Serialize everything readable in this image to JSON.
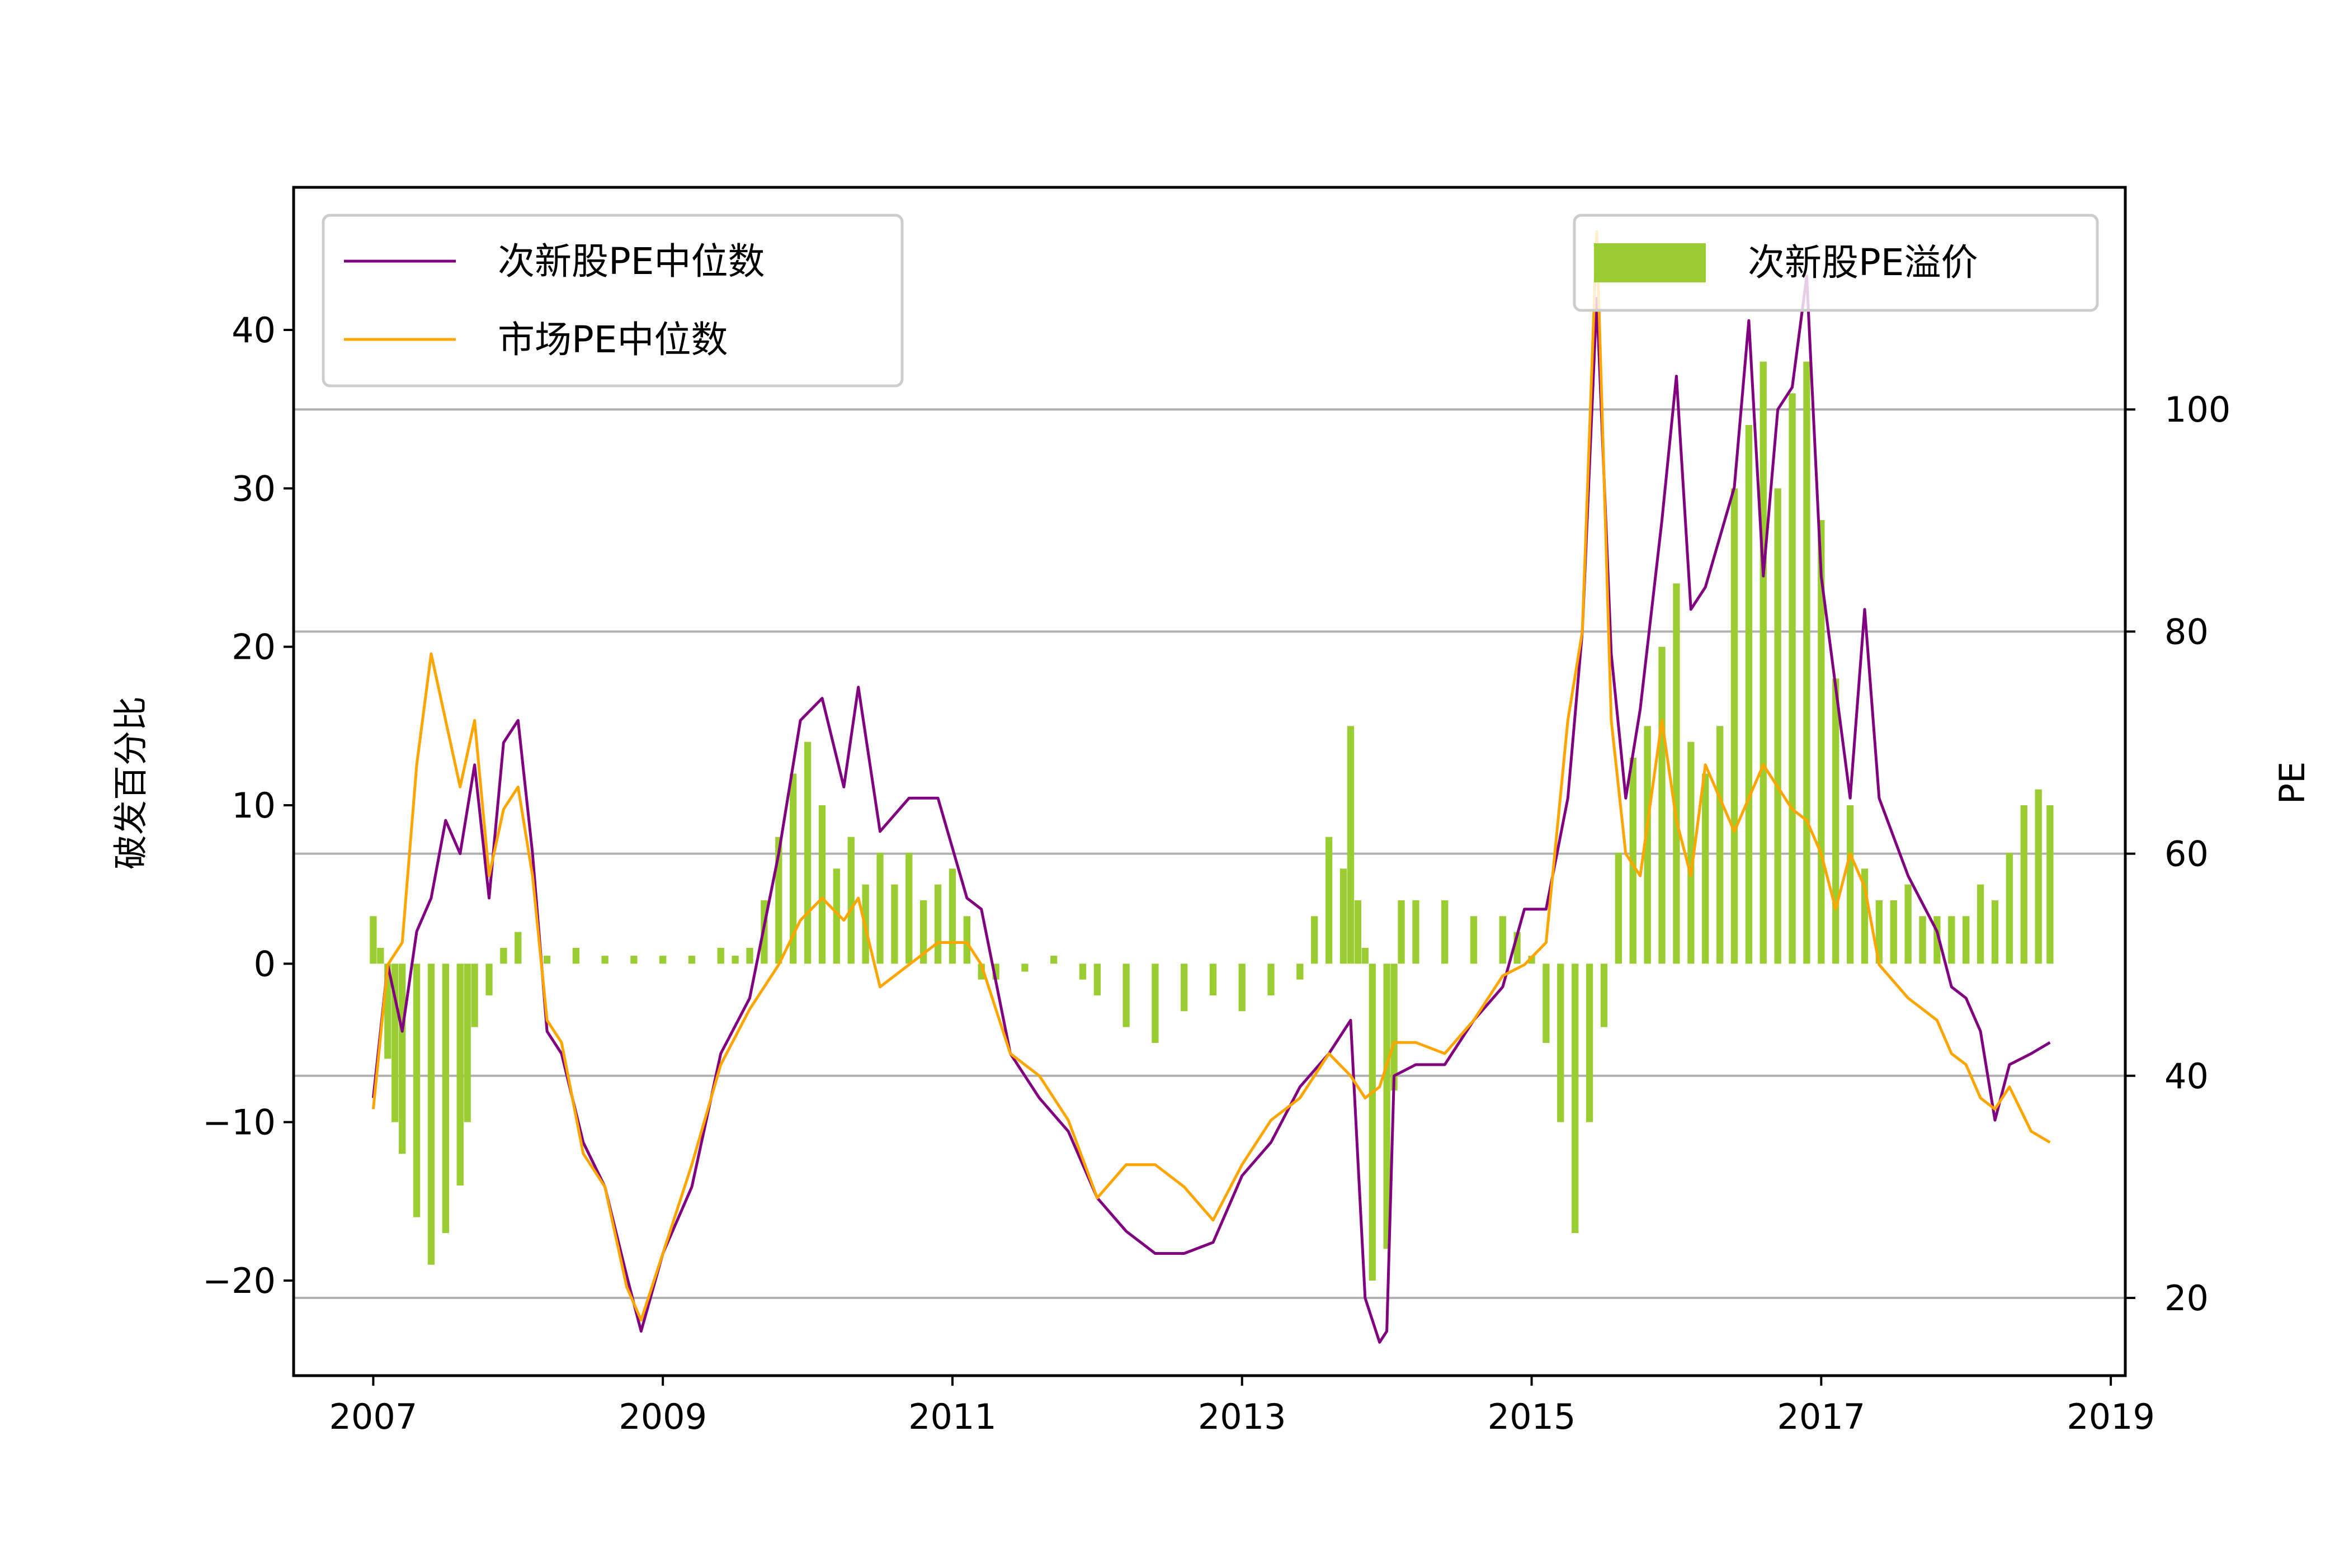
{
  "chart_data": {
    "type": "line",
    "title": "",
    "x_axis": {
      "label": "",
      "range": [
        2006.45,
        2019.1
      ],
      "ticks": [
        2007,
        2009,
        2011,
        2013,
        2015,
        2017,
        2019
      ],
      "tick_labels": [
        "2007",
        "2009",
        "2011",
        "2013",
        "2015",
        "2017",
        "2019"
      ]
    },
    "y_left": {
      "label": "破发百分比",
      "range": [
        -26,
        49
      ],
      "ticks": [
        -20,
        -10,
        0,
        10,
        20,
        30,
        40
      ],
      "tick_labels": [
        "−20",
        "−10",
        "0",
        "10",
        "20",
        "30",
        "40"
      ]
    },
    "y_right": {
      "label": "PE",
      "range": [
        13,
        120
      ],
      "ticks": [
        20,
        40,
        60,
        80,
        100
      ],
      "tick_labels": [
        "20",
        "40",
        "60",
        "80",
        "100"
      ],
      "grid": true
    },
    "legend_left": {
      "placement": "upper-left"
    },
    "legend_right": {
      "placement": "upper-right"
    },
    "colors": {
      "new_stock_pe": "#800080",
      "market_pe": "#FFA500",
      "premium": "#9ACD32",
      "grid": "#b0b0b0"
    },
    "series": [
      {
        "name": "次新股PE中位数",
        "axis": "right",
        "kind": "line",
        "x": [
          2007.0,
          2007.1,
          2007.2,
          2007.3,
          2007.4,
          2007.5,
          2007.6,
          2007.7,
          2007.8,
          2007.9,
          2008.0,
          2008.1,
          2008.2,
          2008.3,
          2008.45,
          2008.6,
          2008.75,
          2008.85,
          2009.0,
          2009.2,
          2009.4,
          2009.6,
          2009.8,
          2009.95,
          2010.1,
          2010.25,
          2010.35,
          2010.5,
          2010.7,
          2010.9,
          2011.1,
          2011.2,
          2011.4,
          2011.6,
          2011.8,
          2012.0,
          2012.2,
          2012.4,
          2012.6,
          2012.8,
          2013.0,
          2013.2,
          2013.4,
          2013.6,
          2013.75,
          2013.85,
          2013.95,
          2014.0,
          2014.05,
          2014.2,
          2014.4,
          2014.6,
          2014.8,
          2014.95,
          2015.1,
          2015.25,
          2015.35,
          2015.45,
          2015.55,
          2015.65,
          2015.75,
          2015.9,
          2016.0,
          2016.1,
          2016.2,
          2016.4,
          2016.5,
          2016.6,
          2016.7,
          2016.8,
          2016.9,
          2017.0,
          2017.1,
          2017.2,
          2017.3,
          2017.4,
          2017.6,
          2017.8,
          2017.9,
          2018.0,
          2018.1,
          2018.2,
          2018.3,
          2018.45,
          2018.58
        ],
        "values": [
          38,
          50,
          44,
          53,
          56,
          63,
          60,
          68,
          56,
          70,
          72,
          60,
          44,
          42,
          34,
          30,
          22,
          17,
          24,
          30,
          42,
          47,
          60,
          72,
          74,
          66,
          75,
          62,
          65,
          65,
          56,
          55,
          42,
          38,
          35,
          29,
          26,
          24,
          24,
          25,
          31,
          34,
          39,
          42,
          45,
          20,
          16,
          17,
          40,
          41,
          41,
          45,
          48,
          55,
          55,
          65,
          80,
          110,
          78,
          65,
          73,
          90,
          103,
          82,
          84,
          93,
          108,
          85,
          100,
          102,
          112,
          85,
          75,
          65,
          82,
          65,
          58,
          53,
          48,
          47,
          44,
          36,
          41,
          42,
          43
        ]
      },
      {
        "name": "市场PE中位数",
        "axis": "right",
        "kind": "line",
        "x": [
          2007.0,
          2007.1,
          2007.2,
          2007.3,
          2007.4,
          2007.5,
          2007.6,
          2007.7,
          2007.8,
          2007.9,
          2008.0,
          2008.1,
          2008.2,
          2008.3,
          2008.45,
          2008.6,
          2008.75,
          2008.85,
          2009.0,
          2009.2,
          2009.4,
          2009.6,
          2009.8,
          2009.95,
          2010.1,
          2010.25,
          2010.35,
          2010.5,
          2010.7,
          2010.9,
          2011.1,
          2011.2,
          2011.4,
          2011.6,
          2011.8,
          2012.0,
          2012.2,
          2012.4,
          2012.6,
          2012.8,
          2013.0,
          2013.2,
          2013.4,
          2013.6,
          2013.75,
          2013.85,
          2013.95,
          2014.0,
          2014.05,
          2014.2,
          2014.4,
          2014.6,
          2014.8,
          2014.95,
          2015.1,
          2015.25,
          2015.35,
          2015.45,
          2015.55,
          2015.65,
          2015.75,
          2015.9,
          2016.0,
          2016.1,
          2016.2,
          2016.4,
          2016.5,
          2016.6,
          2016.7,
          2016.8,
          2016.9,
          2017.0,
          2017.1,
          2017.2,
          2017.3,
          2017.4,
          2017.6,
          2017.8,
          2017.9,
          2018.0,
          2018.1,
          2018.2,
          2018.3,
          2018.45,
          2018.58
        ],
        "values": [
          37,
          50,
          52,
          68,
          78,
          72,
          66,
          72,
          58,
          64,
          66,
          58,
          45,
          43,
          33,
          30,
          21,
          18,
          24,
          32,
          41,
          46,
          50,
          54,
          56,
          54,
          56,
          48,
          50,
          52,
          52,
          50,
          42,
          40,
          36,
          29,
          32,
          32,
          30,
          27,
          32,
          36,
          38,
          42,
          40,
          38,
          39,
          41,
          43,
          43,
          42,
          45,
          49,
          50,
          52,
          72,
          80,
          116,
          72,
          60,
          58,
          72,
          63,
          58,
          68,
          62,
          65,
          68,
          66,
          64,
          63,
          60,
          55,
          60,
          57,
          50,
          47,
          45,
          42,
          41,
          38,
          37,
          39,
          35,
          34
        ]
      },
      {
        "name": "次新股PE溢价",
        "axis": "left",
        "kind": "bar",
        "x": [
          2007.0,
          2007.05,
          2007.1,
          2007.15,
          2007.2,
          2007.3,
          2007.4,
          2007.5,
          2007.6,
          2007.65,
          2007.7,
          2007.8,
          2007.9,
          2008.0,
          2008.2,
          2008.4,
          2008.6,
          2008.8,
          2009.0,
          2009.2,
          2009.4,
          2009.5,
          2009.6,
          2009.7,
          2009.8,
          2009.9,
          2010.0,
          2010.1,
          2010.2,
          2010.3,
          2010.4,
          2010.5,
          2010.6,
          2010.7,
          2010.8,
          2010.9,
          2011.0,
          2011.1,
          2011.2,
          2011.3,
          2011.5,
          2011.7,
          2011.9,
          2012.0,
          2012.2,
          2012.4,
          2012.6,
          2012.8,
          2013.0,
          2013.2,
          2013.4,
          2013.5,
          2013.6,
          2013.7,
          2013.75,
          2013.8,
          2013.85,
          2013.9,
          2014.0,
          2014.05,
          2014.1,
          2014.2,
          2014.4,
          2014.6,
          2014.8,
          2014.9,
          2015.0,
          2015.1,
          2015.2,
          2015.3,
          2015.4,
          2015.5,
          2015.6,
          2015.7,
          2015.8,
          2015.9,
          2016.0,
          2016.1,
          2016.2,
          2016.3,
          2016.4,
          2016.5,
          2016.6,
          2016.7,
          2016.8,
          2016.9,
          2017.0,
          2017.1,
          2017.2,
          2017.3,
          2017.4,
          2017.5,
          2017.6,
          2017.7,
          2017.8,
          2017.9,
          2018.0,
          2018.1,
          2018.2,
          2018.3,
          2018.4,
          2018.5,
          2018.58
        ],
        "values": [
          3,
          1,
          -6,
          -10,
          -12,
          -16,
          -19,
          -17,
          -14,
          -10,
          -4,
          -2,
          1,
          2,
          0.5,
          1,
          0.5,
          0.5,
          0.5,
          0.5,
          1,
          0.5,
          1,
          4,
          8,
          12,
          14,
          10,
          6,
          8,
          5,
          7,
          5,
          7,
          4,
          5,
          6,
          3,
          -1,
          -1,
          -0.5,
          0.5,
          -1,
          -2,
          -4,
          -5,
          -3,
          -2,
          -3,
          -2,
          -1,
          3,
          8,
          6,
          15,
          4,
          1,
          -20,
          -18,
          -8,
          4,
          4,
          4,
          3,
          3,
          2,
          0.5,
          -5,
          -10,
          -17,
          -10,
          -4,
          7,
          13,
          15,
          20,
          24,
          14,
          12,
          15,
          30,
          34,
          38,
          30,
          36,
          38,
          28,
          18,
          10,
          6,
          4,
          4,
          5,
          3,
          3,
          3,
          3,
          5,
          4,
          7,
          10,
          11,
          10
        ]
      }
    ]
  }
}
